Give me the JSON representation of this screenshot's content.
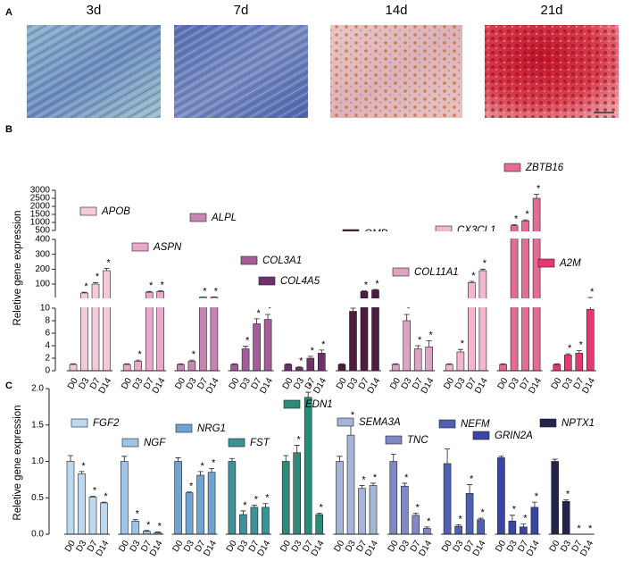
{
  "panel_a": {
    "label": "A",
    "images": [
      {
        "title": "3d"
      },
      {
        "title": "7d"
      },
      {
        "title": "14d"
      },
      {
        "title": "21d"
      }
    ]
  },
  "chart_data": [
    {
      "type": "bar",
      "panel_label": "B",
      "y_label": "Reletive gene expression",
      "categories": [
        "D0",
        "D3",
        "D7",
        "D14"
      ],
      "y_segments": [
        {
          "ylim": [
            0,
            10
          ],
          "yticks": [
            0,
            2,
            4,
            6,
            8,
            10
          ]
        },
        {
          "ylim": [
            10,
            400
          ],
          "yticks": [
            100,
            200,
            300,
            400
          ]
        },
        {
          "ylim": [
            500,
            3000
          ],
          "yticks": [
            500,
            1000,
            1500,
            2000,
            2500,
            3000
          ]
        }
      ],
      "series": [
        {
          "name": "APOB",
          "color": "#f4c9da",
          "values": [
            1,
            40,
            100,
            190
          ],
          "errors": [
            0.1,
            5,
            10,
            15
          ],
          "significance": [
            null,
            "*",
            "*",
            "*"
          ]
        },
        {
          "name": "ASPN",
          "color": "#eaa9cb",
          "values": [
            1,
            1.5,
            45,
            50
          ],
          "errors": [
            0.1,
            0.2,
            5,
            5
          ],
          "significance": [
            null,
            "*",
            "*",
            "*"
          ]
        },
        {
          "name": "ALPL",
          "color": "#c785b3",
          "values": [
            1,
            1.5,
            12,
            12
          ],
          "errors": [
            0.1,
            0.2,
            1,
            1
          ],
          "significance": [
            null,
            "*",
            "*",
            "*"
          ]
        },
        {
          "name": "COL3A1",
          "color": "#a45c9a",
          "values": [
            1,
            3.5,
            7.5,
            8.2
          ],
          "errors": [
            0.1,
            0.4,
            0.8,
            0.8
          ],
          "significance": [
            null,
            "*",
            "*",
            "*"
          ]
        },
        {
          "name": "COL4A5",
          "color": "#6e316b",
          "values": [
            1,
            0.5,
            2,
            2.8
          ],
          "errors": [
            0.1,
            0.1,
            0.3,
            0.5
          ],
          "significance": [
            null,
            "*",
            "*",
            "*"
          ]
        },
        {
          "name": "OMD",
          "color": "#4e1c40",
          "values": [
            1,
            9.5,
            50,
            60
          ],
          "errors": [
            0.1,
            0.5,
            4,
            4
          ],
          "significance": [
            null,
            "*",
            "*",
            "*"
          ]
        },
        {
          "name": "COL11A1",
          "color": "#dda5c4",
          "values": [
            1,
            8,
            3.5,
            3.8
          ],
          "errors": [
            0.1,
            1,
            0.5,
            1
          ],
          "significance": [
            null,
            "*",
            "*",
            "*"
          ]
        },
        {
          "name": "CX3CL1",
          "color": "#f4b6cf",
          "values": [
            1,
            3,
            110,
            190
          ],
          "errors": [
            0.1,
            0.4,
            8,
            10
          ],
          "significance": [
            null,
            "*",
            "*",
            "*"
          ]
        },
        {
          "name": "ZBTB16",
          "color": "#e46c95",
          "values": [
            1,
            800,
            1100,
            2500
          ],
          "errors": [
            0.1,
            60,
            60,
            250
          ],
          "significance": [
            null,
            "*",
            "*",
            "*"
          ]
        },
        {
          "name": "A2M",
          "color": "#e6386f",
          "values": [
            1,
            2.5,
            2.8,
            9.8
          ],
          "errors": [
            0.1,
            0.2,
            0.4,
            0.3
          ],
          "significance": [
            null,
            "*",
            "*",
            "*"
          ]
        }
      ]
    },
    {
      "type": "bar",
      "panel_label": "C",
      "y_label": "Reletive gene expression",
      "categories": [
        "D0",
        "D3",
        "D7",
        "D14"
      ],
      "ylim": [
        0,
        2
      ],
      "yticks": [
        {
          "value": 0,
          "label": "0.0"
        },
        0.5,
        {
          "value": 1,
          "label": "1.0"
        },
        1.5,
        {
          "value": 2,
          "label": "2.0"
        }
      ],
      "series": [
        {
          "name": "FGF2",
          "color": "#bcd9ef",
          "values": [
            1.0,
            0.83,
            0.51,
            0.43
          ],
          "errors": [
            0.08,
            0.03,
            0.01,
            0.01
          ],
          "significance": [
            null,
            "*",
            "*",
            "*"
          ]
        },
        {
          "name": "NGF",
          "color": "#9ec5e7",
          "values": [
            1.0,
            0.18,
            0.04,
            0.02
          ],
          "errors": [
            0.07,
            0.02,
            0.01,
            0.01
          ],
          "significance": [
            null,
            "*",
            "*",
            "*"
          ]
        },
        {
          "name": "NRG1",
          "color": "#6fa4d2",
          "values": [
            1.0,
            0.57,
            0.81,
            0.85
          ],
          "errors": [
            0.05,
            0.01,
            0.05,
            0.05
          ],
          "significance": [
            null,
            "*",
            "*",
            "*"
          ]
        },
        {
          "name": "FST",
          "color": "#3e9099",
          "values": [
            1.0,
            0.27,
            0.37,
            0.37
          ],
          "errors": [
            0.04,
            0.05,
            0.03,
            0.05
          ],
          "significance": [
            null,
            "*",
            "*",
            "*"
          ]
        },
        {
          "name": "EDN1",
          "color": "#2f8a79",
          "values": [
            1.0,
            1.12,
            1.88,
            0.27
          ],
          "errors": [
            0.08,
            0.1,
            0.07,
            0.02
          ],
          "significance": [
            null,
            "*",
            "*",
            "*"
          ]
        },
        {
          "name": "SEMA3A",
          "color": "#a6b4d7",
          "values": [
            1.0,
            1.36,
            0.63,
            0.67
          ],
          "errors": [
            0.07,
            0.2,
            0.04,
            0.03
          ],
          "significance": [
            null,
            "*",
            "*",
            "*"
          ]
        },
        {
          "name": "TNC",
          "color": "#8089c4",
          "values": [
            1.0,
            0.66,
            0.26,
            0.08
          ],
          "errors": [
            0.1,
            0.04,
            0.03,
            0.02
          ],
          "significance": [
            null,
            "*",
            "*",
            "*"
          ]
        },
        {
          "name": "NEFM",
          "color": "#4f5fb1",
          "values": [
            0.97,
            0.11,
            0.56,
            0.2
          ],
          "errors": [
            0.2,
            0.02,
            0.12,
            0.02
          ],
          "significance": [
            null,
            "*",
            "*",
            "*"
          ]
        },
        {
          "name": "GRIN2A",
          "color": "#3a45a1",
          "values": [
            1.05,
            0.18,
            0.1,
            0.37
          ],
          "errors": [
            0.02,
            0.08,
            0.04,
            0.07
          ],
          "significance": [
            null,
            "*",
            "*",
            "*"
          ]
        },
        {
          "name": "NPTX1",
          "color": "#23244e",
          "values": [
            1.0,
            0.45,
            0,
            0
          ],
          "errors": [
            0.03,
            0.02,
            0,
            0
          ],
          "significance": [
            null,
            "*",
            "*",
            "*"
          ]
        }
      ]
    }
  ]
}
